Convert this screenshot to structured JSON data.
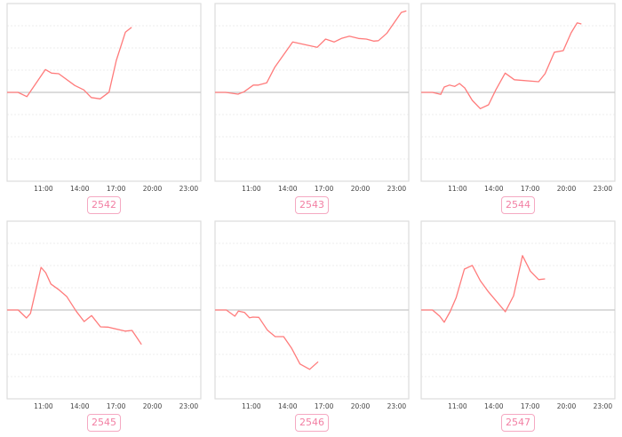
{
  "colors": {
    "line": "#ff7b7b",
    "baseline": "#c8c8c8",
    "grid": "#eeeeee",
    "frame": "#dddddd",
    "label": "#f27fa3",
    "label_border": "#f5a9c2",
    "tick_text": "#444444"
  },
  "chart_data": [
    {
      "type": "line",
      "label": "2542",
      "xlim": [
        "08:00",
        "24:00"
      ],
      "ylim": [
        -4,
        4
      ],
      "x_ticks": [
        "11:00",
        "14:00",
        "17:00",
        "20:00",
        "23:00"
      ],
      "grid": true,
      "baseline": 0,
      "x": [
        "08:00",
        "08:54",
        "09:38",
        "11:10",
        "11:40",
        "12:16",
        "13:36",
        "14:20",
        "14:57",
        "15:41",
        "16:25",
        "17:01",
        "17:46",
        "18:17"
      ],
      "y": [
        0,
        0,
        -0.19,
        1.03,
        0.87,
        0.84,
        0.31,
        0.11,
        -0.23,
        -0.29,
        0.01,
        1.44,
        2.71,
        2.93
      ]
    },
    {
      "type": "line",
      "label": "2543",
      "xlim": [
        "08:00",
        "24:00"
      ],
      "ylim": [
        -4,
        4
      ],
      "x_ticks": [
        "11:00",
        "14:00",
        "17:00",
        "20:00",
        "23:00"
      ],
      "grid": true,
      "baseline": 0,
      "x": [
        "08:00",
        "08:52",
        "09:54",
        "10:24",
        "11:10",
        "11:35",
        "12:16",
        "12:56",
        "14:25",
        "16:26",
        "17:08",
        "17:50",
        "18:26",
        "19:06",
        "19:51",
        "20:30",
        "21:06",
        "21:30",
        "22:12",
        "23:23",
        "23:48"
      ],
      "y": [
        0,
        0,
        -0.08,
        0.03,
        0.33,
        0.33,
        0.43,
        1.13,
        2.27,
        2.03,
        2.4,
        2.27,
        2.43,
        2.53,
        2.43,
        2.4,
        2.31,
        2.33,
        2.67,
        3.6,
        3.67
      ]
    },
    {
      "type": "line",
      "label": "2544",
      "xlim": [
        "08:00",
        "24:00"
      ],
      "ylim": [
        -4,
        4
      ],
      "x_ticks": [
        "11:00",
        "14:00",
        "17:00",
        "20:00",
        "23:00"
      ],
      "grid": true,
      "baseline": 0,
      "x": [
        "08:00",
        "08:56",
        "09:37",
        "09:54",
        "10:20",
        "10:46",
        "11:10",
        "11:36",
        "12:13",
        "12:53",
        "13:34",
        "14:10",
        "14:56",
        "15:42",
        "17:42",
        "18:14",
        "19:00",
        "19:44",
        "20:23",
        "20:53",
        "21:14"
      ],
      "y": [
        0,
        0,
        -0.09,
        0.24,
        0.33,
        0.27,
        0.4,
        0.2,
        -0.36,
        -0.73,
        -0.56,
        0.11,
        0.87,
        0.57,
        0.48,
        0.84,
        1.81,
        1.88,
        2.68,
        3.13,
        3.08
      ]
    },
    {
      "type": "line",
      "label": "2545",
      "xlim": [
        "08:00",
        "24:00"
      ],
      "ylim": [
        -4,
        4
      ],
      "x_ticks": [
        "11:00",
        "14:00",
        "17:00",
        "20:00",
        "23:00"
      ],
      "grid": true,
      "baseline": 0,
      "x": [
        "08:00",
        "08:55",
        "09:36",
        "09:56",
        "10:48",
        "11:11",
        "11:37",
        "12:14",
        "12:55",
        "13:42",
        "14:22",
        "14:59",
        "15:43",
        "16:20",
        "17:45",
        "18:19",
        "19:06"
      ],
      "y": [
        0,
        0,
        -0.36,
        -0.15,
        1.92,
        1.68,
        1.17,
        0.93,
        0.61,
        -0.05,
        -0.52,
        -0.25,
        -0.76,
        -0.77,
        -0.95,
        -0.92,
        -1.55
      ]
    },
    {
      "type": "line",
      "label": "2546",
      "xlim": [
        "08:00",
        "24:00"
      ],
      "ylim": [
        -4,
        4
      ],
      "x_ticks": [
        "11:00",
        "14:00",
        "17:00",
        "20:00",
        "23:00"
      ],
      "grid": true,
      "baseline": 0,
      "x": [
        "08:00",
        "08:56",
        "09:38",
        "09:56",
        "10:26",
        "10:51",
        "11:08",
        "11:37",
        "12:20",
        "12:58",
        "13:40",
        "14:20",
        "15:01",
        "15:49",
        "16:31"
      ],
      "y": [
        0,
        0,
        -0.28,
        -0.05,
        -0.11,
        -0.35,
        -0.32,
        -0.33,
        -0.91,
        -1.2,
        -1.2,
        -1.73,
        -2.43,
        -2.67,
        -2.33
      ]
    },
    {
      "type": "line",
      "label": "2547",
      "xlim": [
        "08:00",
        "24:00"
      ],
      "ylim": [
        -4,
        4
      ],
      "x_ticks": [
        "11:00",
        "14:00",
        "17:00",
        "20:00",
        "23:00"
      ],
      "grid": true,
      "baseline": 0,
      "x": [
        "08:00",
        "08:56",
        "09:32",
        "09:54",
        "10:23",
        "10:53",
        "11:34",
        "12:13",
        "12:53",
        "13:34",
        "14:57",
        "15:38",
        "16:22",
        "17:01",
        "17:42",
        "18:14"
      ],
      "y": [
        0,
        0,
        -0.28,
        -0.55,
        -0.08,
        0.55,
        1.84,
        2.01,
        1.32,
        0.81,
        -0.08,
        0.64,
        2.45,
        1.75,
        1.37,
        1.4
      ]
    }
  ]
}
